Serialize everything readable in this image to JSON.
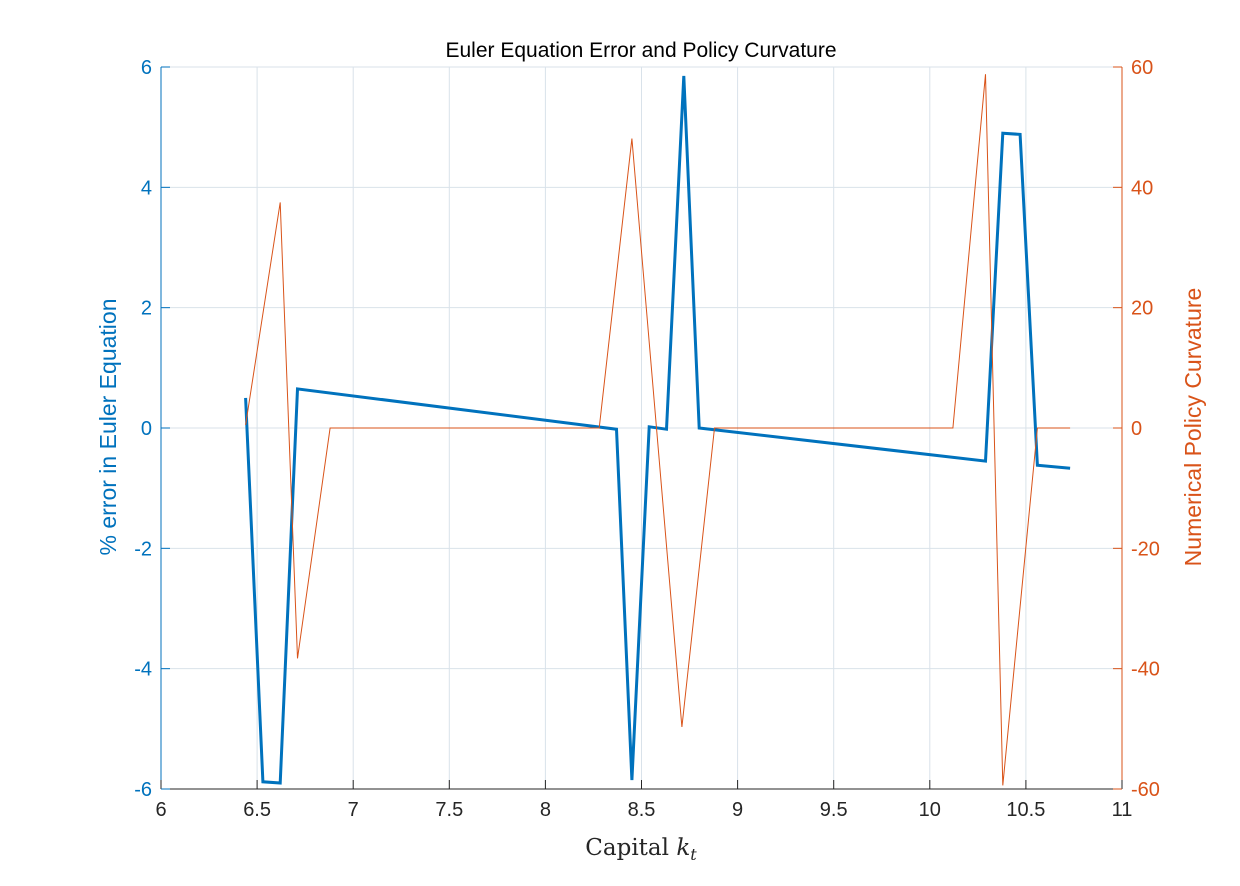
{
  "chart_data": {
    "type": "line",
    "title": "Euler Equation Error and Policy Curvature",
    "xlabel_main": "Capital ",
    "xlabel_var": "k",
    "xlabel_sub": "t",
    "ylabel_left": "% error in Euler Equation",
    "ylabel_right": "Numerical Policy Curvature",
    "xlim": [
      6,
      11
    ],
    "ylim_left": [
      -6,
      6
    ],
    "ylim_right": [
      -60,
      60
    ],
    "grid": true,
    "x_ticks": [
      6,
      6.5,
      7,
      7.5,
      8,
      8.5,
      9,
      9.5,
      10,
      10.5,
      11
    ],
    "x_tick_labels": [
      "6",
      "6.5",
      "7",
      "7.5",
      "8",
      "8.5",
      "9",
      "9.5",
      "10",
      "10.5",
      "11"
    ],
    "y_left_ticks": [
      -6,
      -4,
      -2,
      0,
      2,
      4,
      6
    ],
    "y_left_tick_labels": [
      "-6",
      "-4",
      "-2",
      "0",
      "2",
      "4",
      "6"
    ],
    "y_right_ticks": [
      -60,
      -40,
      -20,
      0,
      20,
      40,
      60
    ],
    "y_right_tick_labels": [
      "-60",
      "-40",
      "-20",
      "0",
      "20",
      "40",
      "60"
    ],
    "colors": {
      "left": "#0072BD",
      "right": "#D95319",
      "grid": "#d9e2ea",
      "axis": "#262626"
    },
    "series": [
      {
        "name": "% error in Euler Equation",
        "axis": "left",
        "x": [
          6.44,
          6.53,
          6.62,
          6.71,
          8.37,
          8.45,
          8.54,
          8.63,
          8.72,
          8.8,
          10.29,
          10.38,
          10.47,
          10.56,
          10.73
        ],
        "values": [
          0.5,
          -5.88,
          -5.9,
          0.65,
          -0.02,
          -5.85,
          0.02,
          -0.02,
          5.85,
          0.0,
          -0.55,
          4.9,
          4.88,
          -0.62,
          -0.67
        ]
      },
      {
        "name": "Numerical Policy Curvature",
        "axis": "right",
        "x": [
          6.44,
          6.62,
          6.71,
          6.88,
          8.28,
          8.45,
          8.71,
          8.88,
          10.12,
          10.29,
          10.38,
          10.56,
          10.73
        ],
        "values": [
          0.5,
          37.5,
          -38.3,
          0,
          0,
          48.1,
          -49.7,
          0,
          0,
          58.8,
          -59.4,
          0,
          0
        ]
      }
    ]
  }
}
